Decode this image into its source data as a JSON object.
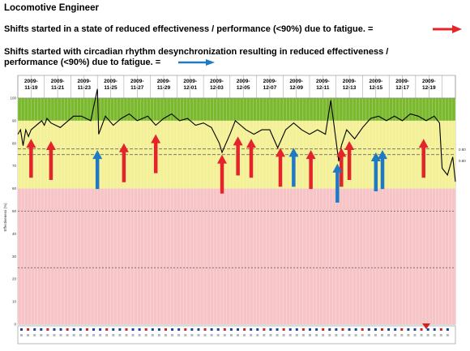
{
  "header": {
    "title": "Locomotive Engineer",
    "line1": "Shifts started in a state of reduced effectiveness / performance (<90%) due to fatigue. =",
    "line2": "Shifts started with circadian rhythm desynchronization resulting in reduced effectiveness / performance (<90%) due to fatigue. ="
  },
  "colors": {
    "green": "#7ab82d",
    "yellow": "#f3f095",
    "pink": "#f6c4c6",
    "red_arrow": "#e3242b",
    "blue_arrow": "#1f7ac3",
    "trace": "#000000"
  },
  "chart_data": {
    "type": "line",
    "title": "",
    "ylabel": "Effectiveness (%)",
    "ylim": [
      0,
      100
    ],
    "yticks": [
      0,
      10,
      20,
      30,
      40,
      50,
      60,
      70,
      80,
      90,
      100
    ],
    "x_labels": [
      "2009-11-19",
      "2009-11-21",
      "2009-11-23",
      "2009-11-25",
      "2009-11-27",
      "2009-11-29",
      "2009-12-01",
      "2009-12-03",
      "2009-12-05",
      "2009-12-07",
      "2009-12-09",
      "2009-12-11",
      "2009-12-13",
      "2009-12-15",
      "2009-12-17",
      "2009-12-19"
    ],
    "bands": [
      {
        "name": "green",
        "from": 90,
        "to": 100
      },
      {
        "name": "yellow",
        "from": 60,
        "to": 90
      },
      {
        "name": "pink",
        "from": 0,
        "to": 60
      }
    ],
    "reference_lines": [
      77.5,
      75,
      50,
      25
    ],
    "right_axis_labels": [
      "0.80",
      "0.80"
    ],
    "red_arrows": [
      {
        "x": 1.0,
        "y": 82
      },
      {
        "x": 2.5,
        "y": 81
      },
      {
        "x": 8.0,
        "y": 80
      },
      {
        "x": 10.4,
        "y": 84
      },
      {
        "x": 15.4,
        "y": 75
      },
      {
        "x": 16.6,
        "y": 83
      },
      {
        "x": 17.6,
        "y": 82
      },
      {
        "x": 19.8,
        "y": 78
      },
      {
        "x": 22.1,
        "y": 77
      },
      {
        "x": 24.4,
        "y": 78
      },
      {
        "x": 25.0,
        "y": 81
      },
      {
        "x": 30.6,
        "y": 82
      }
    ],
    "blue_arrows": [
      {
        "x": 6.0,
        "y": 77
      },
      {
        "x": 20.8,
        "y": 78
      },
      {
        "x": 24.1,
        "y": 71
      },
      {
        "x": 27.0,
        "y": 76
      },
      {
        "x": 27.5,
        "y": 77
      }
    ],
    "trace": [
      [
        0.0,
        84
      ],
      [
        0.2,
        86
      ],
      [
        0.4,
        79
      ],
      [
        0.6,
        86
      ],
      [
        0.8,
        83
      ],
      [
        1.0,
        86
      ],
      [
        1.8,
        90
      ],
      [
        2.0,
        88
      ],
      [
        2.2,
        91
      ],
      [
        2.5,
        89
      ],
      [
        3.2,
        87
      ],
      [
        4.2,
        92
      ],
      [
        4.8,
        92
      ],
      [
        5.5,
        90
      ],
      [
        6.0,
        104
      ],
      [
        6.1,
        84
      ],
      [
        6.6,
        92
      ],
      [
        7.2,
        88
      ],
      [
        7.8,
        91
      ],
      [
        8.4,
        93
      ],
      [
        9.0,
        90
      ],
      [
        9.8,
        92
      ],
      [
        10.4,
        88
      ],
      [
        11.0,
        91
      ],
      [
        11.6,
        93
      ],
      [
        12.2,
        90
      ],
      [
        12.8,
        91
      ],
      [
        13.4,
        88
      ],
      [
        14.0,
        89
      ],
      [
        14.6,
        87
      ],
      [
        15.2,
        80
      ],
      [
        15.4,
        76
      ],
      [
        16.0,
        84
      ],
      [
        16.4,
        90
      ],
      [
        16.8,
        88
      ],
      [
        17.2,
        86
      ],
      [
        17.8,
        84
      ],
      [
        18.4,
        86
      ],
      [
        19.0,
        86
      ],
      [
        19.6,
        78
      ],
      [
        20.2,
        86
      ],
      [
        20.8,
        89
      ],
      [
        21.4,
        86
      ],
      [
        22.0,
        84
      ],
      [
        22.6,
        86
      ],
      [
        23.2,
        84
      ],
      [
        23.6,
        99
      ],
      [
        24.2,
        72
      ],
      [
        24.4,
        79
      ],
      [
        24.8,
        86
      ],
      [
        25.4,
        82
      ],
      [
        26.0,
        87
      ],
      [
        26.6,
        91
      ],
      [
        27.2,
        92
      ],
      [
        27.8,
        90
      ],
      [
        28.4,
        92
      ],
      [
        29.0,
        90
      ],
      [
        29.6,
        93
      ],
      [
        30.2,
        92
      ],
      [
        30.8,
        90
      ],
      [
        31.4,
        92
      ],
      [
        31.8,
        89
      ],
      [
        32.0,
        69
      ],
      [
        32.4,
        66
      ],
      [
        32.8,
        74
      ],
      [
        33.0,
        63
      ]
    ]
  }
}
